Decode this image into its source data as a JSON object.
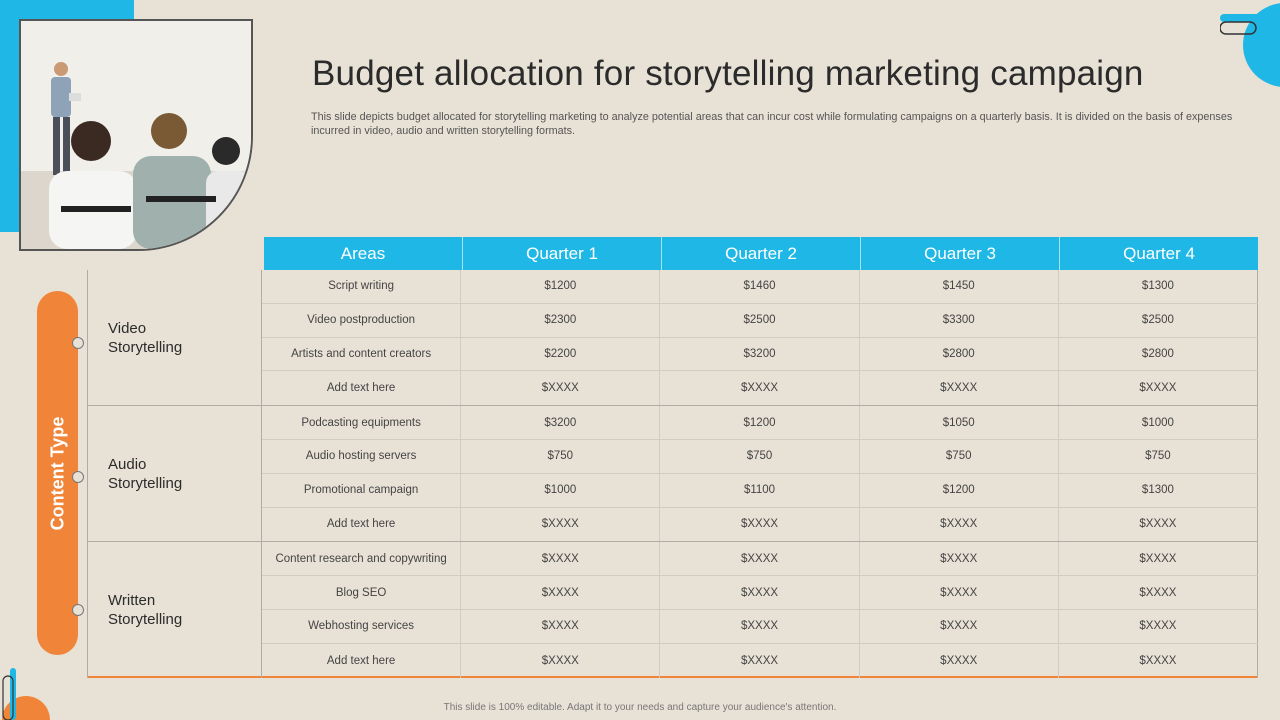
{
  "title": "Budget allocation for storytelling marketing campaign",
  "description": "This slide depicts budget allocated for storytelling marketing to analyze potential areas that can incur cost while formulating campaigns on a quarterly basis. It is divided on the basis of expenses incurred in video, audio and written storytelling formats.",
  "side_label": "Content Type",
  "table": {
    "headers": [
      "Areas",
      "Quarter 1",
      "Quarter 2",
      "Quarter 3",
      "Quarter 4"
    ],
    "groups": [
      {
        "label": "Video Storytelling",
        "rows": [
          [
            "Script writing",
            "$1200",
            "$1460",
            "$1450",
            "$1300"
          ],
          [
            "Video postproduction",
            "$2300",
            "$2500",
            "$3300",
            "$2500"
          ],
          [
            "Artists and content creators",
            "$2200",
            "$3200",
            "$2800",
            "$2800"
          ],
          [
            "Add text here",
            "$XXXX",
            "$XXXX",
            "$XXXX",
            "$XXXX"
          ]
        ]
      },
      {
        "label": "Audio Storytelling",
        "rows": [
          [
            "Podcasting equipments",
            "$3200",
            "$1200",
            "$1050",
            "$1000"
          ],
          [
            "Audio hosting servers",
            "$750",
            "$750",
            "$750",
            "$750"
          ],
          [
            "Promotional campaign",
            "$1000",
            "$1100",
            "$1200",
            "$1300"
          ],
          [
            "Add text here",
            "$XXXX",
            "$XXXX",
            "$XXXX",
            "$XXXX"
          ]
        ]
      },
      {
        "label": "Written Storytelling",
        "rows": [
          [
            "Content research and copywriting",
            "$XXXX",
            "$XXXX",
            "$XXXX",
            "$XXXX"
          ],
          [
            "Blog SEO",
            "$XXXX",
            "$XXXX",
            "$XXXX",
            "$XXXX"
          ],
          [
            "Webhosting services",
            "$XXXX",
            "$XXXX",
            "$XXXX",
            "$XXXX"
          ],
          [
            "Add text here",
            "$XXXX",
            "$XXXX",
            "$XXXX",
            "$XXXX"
          ]
        ]
      }
    ]
  },
  "footer": "This slide is 100% editable. Adapt it to your needs and capture your audience's attention.",
  "colors": {
    "accent_blue": "#1fb8e6",
    "accent_orange": "#f08539",
    "background": "#e8e1d6"
  }
}
